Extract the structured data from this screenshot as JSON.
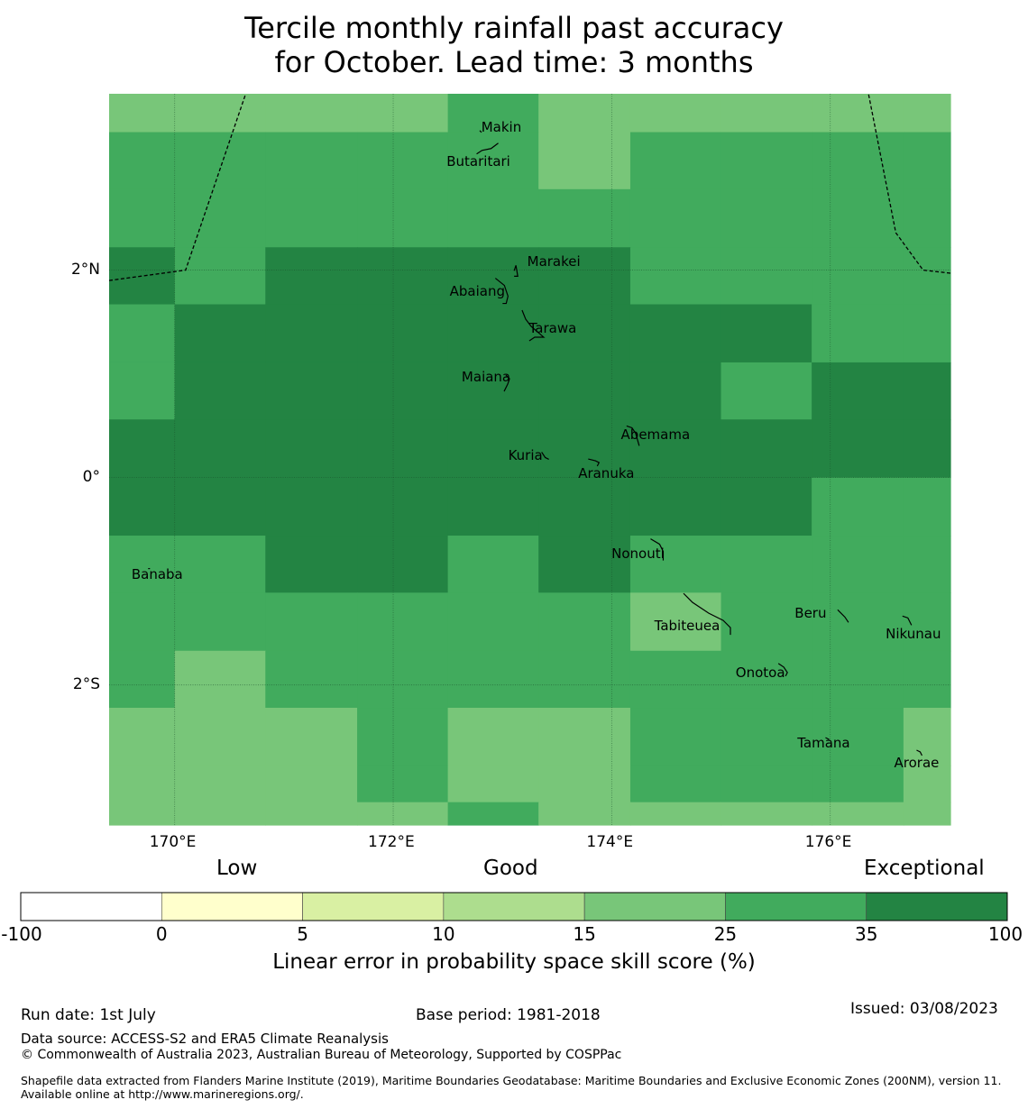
{
  "title": {
    "line1": "Tercile monthly rainfall past accuracy",
    "line2": "for October. Lead time: 3 months"
  },
  "map": {
    "lon_range": [
      169.4,
      177.1
    ],
    "lat_range": [
      -3.35,
      3.7
    ],
    "x_ticks": [
      {
        "value": 170,
        "label": "170°E"
      },
      {
        "value": 172,
        "label": "172°E"
      },
      {
        "value": 174,
        "label": "174°E"
      },
      {
        "value": 176,
        "label": "176°E"
      }
    ],
    "y_ticks": [
      {
        "value": 2,
        "label": "2°N"
      },
      {
        "value": 0,
        "label": "0°"
      },
      {
        "value": -2,
        "label": "2°S"
      }
    ],
    "cell_grid": {
      "lon_edges": [
        169.4,
        170.0,
        170.83,
        171.67,
        172.5,
        173.33,
        174.17,
        175.0,
        175.83,
        176.67,
        177.1
      ],
      "lat_edges": [
        3.7,
        3.33,
        2.78,
        2.22,
        1.67,
        1.11,
        0.56,
        0.0,
        -0.56,
        -1.11,
        -1.67,
        -2.22,
        -2.78,
        -3.13,
        -3.35
      ],
      "category_rows": [
        [
          4,
          4,
          4,
          4,
          5,
          4,
          4,
          4,
          4,
          4
        ],
        [
          5,
          5,
          5,
          5,
          5,
          4,
          5,
          5,
          5,
          5
        ],
        [
          5,
          5,
          5,
          5,
          5,
          5,
          5,
          5,
          5,
          5
        ],
        [
          6,
          5,
          6,
          6,
          6,
          6,
          5,
          5,
          5,
          5
        ],
        [
          5,
          6,
          6,
          6,
          6,
          6,
          6,
          6,
          5,
          5
        ],
        [
          5,
          6,
          6,
          6,
          6,
          6,
          6,
          5,
          6,
          6
        ],
        [
          6,
          6,
          6,
          6,
          6,
          6,
          6,
          6,
          6,
          6
        ],
        [
          6,
          6,
          6,
          6,
          6,
          6,
          6,
          6,
          5,
          5
        ],
        [
          5,
          5,
          6,
          6,
          5,
          6,
          5,
          5,
          5,
          5
        ],
        [
          5,
          5,
          5,
          5,
          5,
          5,
          4,
          5,
          5,
          5
        ],
        [
          5,
          4,
          5,
          5,
          5,
          5,
          5,
          5,
          5,
          5
        ],
        [
          4,
          4,
          4,
          5,
          4,
          4,
          5,
          5,
          5,
          4
        ],
        [
          4,
          4,
          4,
          5,
          4,
          4,
          5,
          5,
          5,
          4
        ],
        [
          4,
          4,
          4,
          4,
          5,
          4,
          4,
          4,
          4,
          4
        ]
      ]
    },
    "eez_boundaries": [
      [
        [
          169.4,
          1.9
        ],
        [
          170.1,
          2.0
        ],
        [
          170.65,
          3.7
        ]
      ],
      [
        [
          177.1,
          1.97
        ],
        [
          176.85,
          2.0
        ],
        [
          176.6,
          2.36
        ],
        [
          176.35,
          3.7
        ]
      ]
    ],
    "islands": [
      {
        "name": "Makin",
        "lon": 172.99,
        "lat": 3.38,
        "label_dx": 0,
        "label_dy": 0
      },
      {
        "name": "Butaritari",
        "lon": 172.78,
        "lat": 3.05,
        "label_dx": 0,
        "label_dy": 0
      },
      {
        "name": "Marakei",
        "lon": 173.47,
        "lat": 2.08,
        "label_dx": 0,
        "label_dy": 0
      },
      {
        "name": "Abaiang",
        "lon": 172.77,
        "lat": 1.8,
        "label_dx": 0,
        "label_dy": 0
      },
      {
        "name": "Tarawa",
        "lon": 173.46,
        "lat": 1.44,
        "label_dx": 0,
        "label_dy": 0
      },
      {
        "name": "Maiana",
        "lon": 172.85,
        "lat": 0.97,
        "label_dx": 0,
        "label_dy": 0
      },
      {
        "name": "Abemama",
        "lon": 174.4,
        "lat": 0.41,
        "label_dx": 0,
        "label_dy": 0
      },
      {
        "name": "Kuria",
        "lon": 173.21,
        "lat": 0.21,
        "label_dx": 0,
        "label_dy": 0
      },
      {
        "name": "Aranuka",
        "lon": 173.95,
        "lat": 0.04,
        "label_dx": 0,
        "label_dy": 0
      },
      {
        "name": "Nonouti",
        "lon": 174.24,
        "lat": -0.73,
        "label_dx": 0,
        "label_dy": 0
      },
      {
        "name": "Banaba",
        "lon": 169.84,
        "lat": -0.93,
        "label_dx": 0,
        "label_dy": 0
      },
      {
        "name": "Tabiteuea",
        "lon": 174.69,
        "lat": -1.43,
        "label_dx": 0,
        "label_dy": 0
      },
      {
        "name": "Beru",
        "lon": 175.82,
        "lat": -1.31,
        "label_dx": 0,
        "label_dy": 0
      },
      {
        "name": "Nikunau",
        "lon": 176.76,
        "lat": -1.51,
        "label_dx": 0,
        "label_dy": 0
      },
      {
        "name": "Onotoa",
        "lon": 175.36,
        "lat": -1.88,
        "label_dx": 0,
        "label_dy": 0
      },
      {
        "name": "Tamana",
        "lon": 175.94,
        "lat": -2.56,
        "label_dx": 0,
        "label_dy": 0
      },
      {
        "name": "Arorae",
        "lon": 176.79,
        "lat": -2.75,
        "label_dx": 0,
        "label_dy": 0
      }
    ]
  },
  "colorbar": {
    "categories": {
      "low": "Low",
      "good": "Good",
      "exceptional": "Exceptional"
    },
    "bins": [
      {
        "from": -100,
        "to": 0,
        "color": "#ffffff"
      },
      {
        "from": 0,
        "to": 5,
        "color": "#ffffcc"
      },
      {
        "from": 5,
        "to": 10,
        "color": "#d9f0a3"
      },
      {
        "from": 10,
        "to": 15,
        "color": "#addd8e"
      },
      {
        "from": 15,
        "to": 25,
        "color": "#78c679"
      },
      {
        "from": 25,
        "to": 35,
        "color": "#41ab5d"
      },
      {
        "from": 35,
        "to": 100,
        "color": "#238443"
      }
    ],
    "tick_labels": [
      "-100",
      "0",
      "5",
      "10",
      "15",
      "25",
      "35",
      "100"
    ],
    "label": "Linear error in probability space skill score (%)"
  },
  "footer": {
    "run_date": "Run date: 1st July",
    "base_period": "Base period: 1981-2018",
    "issued": "Issued: 03/08/2023",
    "data_source": "Data source: ACCESS-S2 and ERA5 Climate Reanalysis",
    "copyright": "© Commonwealth of Australia 2023, Australian Bureau of Meteorology, Supported by COSPPac",
    "shapefile": "Shapefile data extracted from Flanders Marine Institute (2019), Maritime Boundaries Geodatabase: Maritime Boundaries and Exclusive Economic Zones (200NM), version 11. Available online at http://www.marineregions.org/."
  }
}
